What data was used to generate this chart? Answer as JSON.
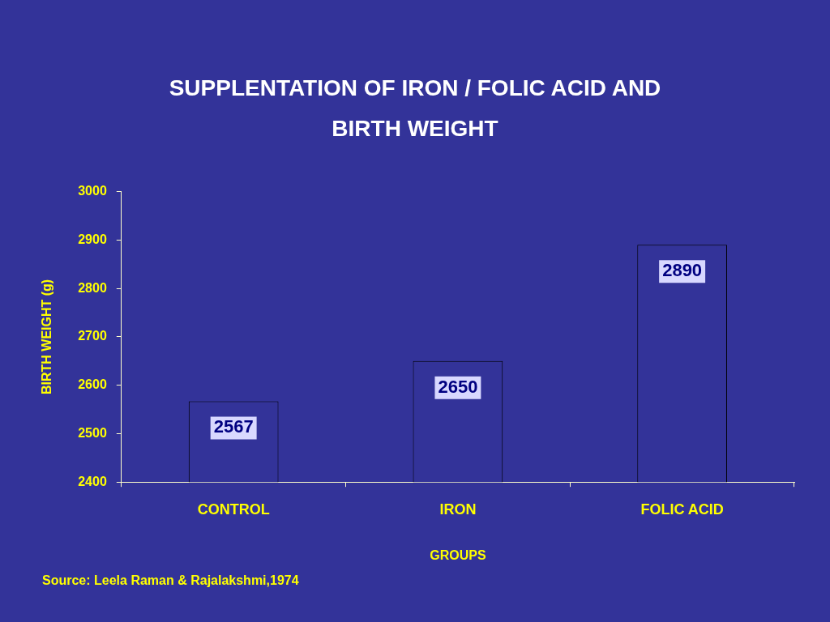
{
  "chart_data": {
    "type": "bar",
    "title": "SUPPLENTATION OF IRON / FOLIC ACID AND BIRTH WEIGHT",
    "xlabel": "GROUPS",
    "ylabel": "BIRTH WEIGHT (g)",
    "categories": [
      "CONTROL",
      "IRON",
      "FOLIC ACID"
    ],
    "values": [
      2567,
      2650,
      2890
    ],
    "color": "#333399",
    "ylim": [
      2400,
      3000
    ],
    "yticks": [
      2400,
      2500,
      2600,
      2700,
      2800,
      2900,
      3000
    ],
    "data_labels": true,
    "annotations": [
      "Source: Leela Raman & Rajalakshmi,1974"
    ]
  }
}
